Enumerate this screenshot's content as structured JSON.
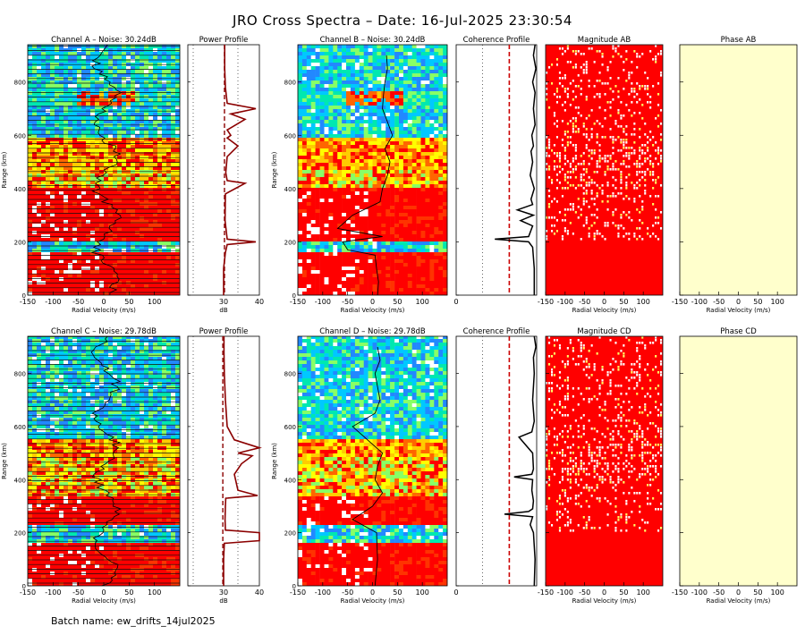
{
  "header": {
    "title": "JRO Cross Spectra – Date: 16-Jul-2025 23:30:54"
  },
  "footer": {
    "batch_label": "Batch name: ew_drifts_14jul2025"
  },
  "chart_data": {
    "type": "heatmap",
    "xlabel": "Radial Velocity (m/s)",
    "ylabel": "Range (km)",
    "power_xlabel": "dB",
    "range_lim": [
      0,
      940
    ],
    "velocity_lim": [
      -150,
      150
    ],
    "velocity_ticks": [
      -150,
      -100,
      -50,
      0,
      50,
      100
    ],
    "range_ticks": [
      0,
      200,
      400,
      600,
      800
    ],
    "power_ticks": [
      30,
      40
    ],
    "power_lim": [
      20,
      40
    ],
    "coherence_ticks": [
      0
    ],
    "rows": [
      {
        "spectra": [
          {
            "title": "Channel A – Noise: 30.24dB",
            "noise_db": 30.24
          },
          {
            "title": "Channel B – Noise: 30.24dB",
            "noise_db": 30.24
          }
        ],
        "power_title": "Power Profile",
        "coherence_title": "Coherence Profile",
        "magnitude_title": "Magnitude AB",
        "phase_title": "Phase AB",
        "power_profile": {
          "range": [
            0,
            100,
            160,
            190,
            200,
            210,
            280,
            380,
            420,
            430,
            460,
            520,
            560,
            590,
            600,
            620,
            660,
            680,
            700,
            720,
            780,
            850,
            940
          ],
          "db": [
            30,
            30,
            30.5,
            31,
            39,
            31,
            30.4,
            30.5,
            36,
            31,
            30.6,
            31,
            34,
            31,
            32,
            31,
            36,
            32,
            39,
            31,
            30.5,
            30.3,
            30.3
          ]
        },
        "coherence_profile": {
          "range": [
            0,
            100,
            180,
            200,
            210,
            220,
            260,
            280,
            300,
            320,
            340,
            360,
            400,
            450,
            500,
            540,
            560,
            600,
            640,
            700,
            760,
            800,
            850,
            900,
            940
          ],
          "coherence": [
            0.97,
            0.97,
            0.95,
            0.9,
            0.48,
            0.9,
            0.95,
            0.8,
            0.96,
            0.76,
            0.95,
            0.93,
            0.97,
            0.92,
            0.95,
            0.93,
            0.96,
            0.94,
            0.98,
            0.96,
            0.98,
            0.95,
            0.99,
            0.96,
            0.98
          ]
        },
        "doppler_b": {
          "range": [
            0,
            50,
            100,
            150,
            170,
            200,
            220,
            250,
            300,
            350,
            400,
            450,
            500,
            550,
            600,
            650,
            700,
            750,
            800,
            850,
            900
          ],
          "velocity": [
            10,
            12,
            8,
            5,
            -50,
            -60,
            20,
            -70,
            -40,
            15,
            20,
            30,
            35,
            25,
            40,
            30,
            20,
            22,
            25,
            30,
            28
          ]
        }
      },
      {
        "spectra": [
          {
            "title": "Channel C – Noise: 29.78dB",
            "noise_db": 29.78
          },
          {
            "title": "Channel D – Noise: 29.78dB",
            "noise_db": 29.78
          }
        ],
        "power_title": "Power Profile",
        "coherence_title": "Coherence Profile",
        "magnitude_title": "Magnitude CD",
        "phase_title": "Phase CD",
        "power_profile": {
          "range": [
            0,
            100,
            160,
            170,
            200,
            210,
            250,
            300,
            330,
            340,
            360,
            420,
            460,
            490,
            500,
            520,
            550,
            600,
            700,
            800,
            880,
            940
          ],
          "db": [
            30,
            30,
            30.2,
            40,
            40,
            30.5,
            30.4,
            30.5,
            30.6,
            39.5,
            34,
            33,
            35,
            38,
            34,
            40,
            33,
            31,
            30.5,
            30.2,
            30.1,
            30.1
          ]
        },
        "coherence_profile": {
          "range": [
            0,
            100,
            200,
            230,
            260,
            270,
            280,
            290,
            320,
            360,
            400,
            410,
            420,
            440,
            500,
            560,
            580,
            620,
            700,
            800,
            860,
            900,
            940
          ],
          "coherence": [
            0.97,
            0.98,
            0.96,
            0.92,
            0.95,
            0.6,
            0.9,
            0.95,
            0.96,
            0.94,
            0.95,
            0.72,
            0.94,
            0.96,
            0.95,
            0.78,
            0.94,
            0.97,
            0.95,
            0.97,
            0.96,
            0.99,
            0.97
          ]
        },
        "doppler_d": {
          "range": [
            0,
            100,
            200,
            250,
            300,
            350,
            400,
            450,
            500,
            550,
            600,
            650,
            700,
            750,
            800,
            850,
            900
          ],
          "velocity": [
            5,
            10,
            8,
            -40,
            0,
            20,
            5,
            10,
            20,
            -10,
            -40,
            5,
            15,
            10,
            5,
            15,
            10
          ]
        }
      }
    ]
  }
}
